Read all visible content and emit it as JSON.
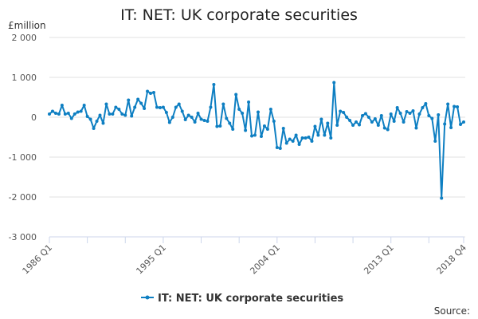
{
  "chart_data": {
    "type": "line",
    "title": "IT: NET: UK corporate securities",
    "ylabel": "£million",
    "source_label": "Source:",
    "ylim": [
      -3000,
      2000
    ],
    "yticks": [
      2000,
      1000,
      0,
      -1000,
      -2000,
      -3000
    ],
    "ytick_labels": [
      "2 000",
      "1 000",
      "0",
      "-1 000",
      "-2 000",
      "-3 000"
    ],
    "xtick_labels": [
      "1986 Q1",
      "1995 Q1",
      "2004 Q1",
      "2013 Q1",
      "2018 Q4"
    ],
    "grid": "horizontal",
    "legend_position": "bottom",
    "color": "#0e7fc2",
    "categories": [
      "1986 Q1",
      "1986 Q2",
      "1986 Q3",
      "1986 Q4",
      "1987 Q1",
      "1987 Q2",
      "1987 Q3",
      "1987 Q4",
      "1988 Q1",
      "1988 Q2",
      "1988 Q3",
      "1988 Q4",
      "1989 Q1",
      "1989 Q2",
      "1989 Q3",
      "1989 Q4",
      "1990 Q1",
      "1990 Q2",
      "1990 Q3",
      "1990 Q4",
      "1991 Q1",
      "1991 Q2",
      "1991 Q3",
      "1991 Q4",
      "1992 Q1",
      "1992 Q2",
      "1992 Q3",
      "1992 Q4",
      "1993 Q1",
      "1993 Q2",
      "1993 Q3",
      "1993 Q4",
      "1994 Q1",
      "1994 Q2",
      "1994 Q3",
      "1994 Q4",
      "1995 Q1",
      "1995 Q2",
      "1995 Q3",
      "1995 Q4",
      "1996 Q1",
      "1996 Q2",
      "1996 Q3",
      "1996 Q4",
      "1997 Q1",
      "1997 Q2",
      "1997 Q3",
      "1997 Q4",
      "1998 Q1",
      "1998 Q2",
      "1998 Q3",
      "1998 Q4",
      "1999 Q1",
      "1999 Q2",
      "1999 Q3",
      "1999 Q4",
      "2000 Q1",
      "2000 Q2",
      "2000 Q3",
      "2000 Q4",
      "2001 Q1",
      "2001 Q2",
      "2001 Q3",
      "2001 Q4",
      "2002 Q1",
      "2002 Q2",
      "2002 Q3",
      "2002 Q4",
      "2003 Q1",
      "2003 Q2",
      "2003 Q3",
      "2003 Q4",
      "2004 Q1",
      "2004 Q2",
      "2004 Q3",
      "2004 Q4",
      "2005 Q1",
      "2005 Q2",
      "2005 Q3",
      "2005 Q4",
      "2006 Q1",
      "2006 Q2",
      "2006 Q3",
      "2006 Q4",
      "2007 Q1",
      "2007 Q2",
      "2007 Q3",
      "2007 Q4",
      "2008 Q1",
      "2008 Q2",
      "2008 Q3",
      "2008 Q4",
      "2009 Q1",
      "2009 Q2",
      "2009 Q3",
      "2009 Q4",
      "2010 Q1",
      "2010 Q2",
      "2010 Q3",
      "2010 Q4",
      "2011 Q1",
      "2011 Q2",
      "2011 Q3",
      "2011 Q4",
      "2012 Q1",
      "2012 Q2",
      "2012 Q3",
      "2012 Q4",
      "2013 Q1",
      "2013 Q2",
      "2013 Q3",
      "2013 Q4",
      "2014 Q1",
      "2014 Q2",
      "2014 Q3",
      "2014 Q4",
      "2015 Q1",
      "2015 Q2",
      "2015 Q3",
      "2015 Q4",
      "2016 Q1",
      "2016 Q2",
      "2016 Q3",
      "2016 Q4",
      "2017 Q1",
      "2017 Q2",
      "2017 Q3",
      "2017 Q4",
      "2018 Q1",
      "2018 Q2",
      "2018 Q3",
      "2018 Q4"
    ],
    "series": [
      {
        "name": "IT: NET: UK corporate securities",
        "values": [
          80,
          150,
          100,
          80,
          300,
          80,
          100,
          -30,
          80,
          130,
          150,
          300,
          20,
          -50,
          -280,
          -100,
          50,
          -150,
          330,
          80,
          80,
          250,
          200,
          80,
          50,
          430,
          30,
          250,
          450,
          350,
          220,
          650,
          600,
          620,
          250,
          240,
          250,
          120,
          -130,
          0,
          250,
          330,
          150,
          -60,
          50,
          0,
          -120,
          100,
          -50,
          -80,
          -100,
          250,
          820,
          -230,
          -220,
          330,
          -30,
          -150,
          -300,
          570,
          200,
          100,
          -330,
          380,
          -470,
          -450,
          130,
          -480,
          -220,
          -300,
          200,
          -100,
          -760,
          -780,
          -280,
          -650,
          -550,
          -600,
          -450,
          -680,
          -520,
          -520,
          -500,
          -600,
          -230,
          -450,
          -50,
          -450,
          -150,
          -520,
          870,
          -200,
          150,
          120,
          0,
          -80,
          -200,
          -120,
          -190,
          40,
          90,
          0,
          -120,
          -40,
          -200,
          40,
          -270,
          -310,
          80,
          -100,
          240,
          100,
          -120,
          140,
          100,
          160,
          -270,
          80,
          240,
          340,
          40,
          -30,
          -600,
          60,
          -2030,
          -170,
          330,
          -260,
          270,
          260,
          -180,
          -120
        ]
      }
    ]
  }
}
